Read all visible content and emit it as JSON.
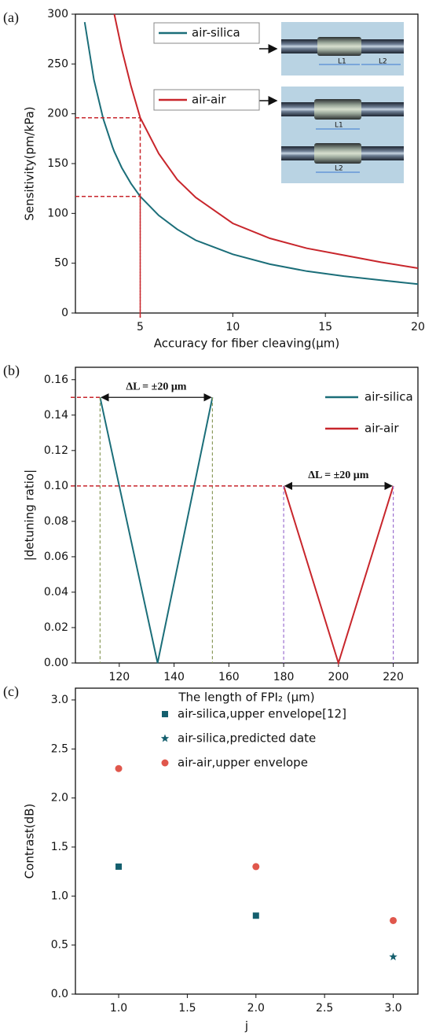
{
  "chart_data": [
    {
      "type": "line",
      "panel_label": "(a)",
      "x_label": "Accuracy for fiber cleaving(μm)",
      "y_label": "Sensitivity(pm/kPa)",
      "x": [
        2,
        2.5,
        3,
        3.5,
        3.6,
        4,
        4.5,
        5,
        6,
        7,
        8,
        10,
        12,
        14,
        16,
        18,
        20
      ],
      "series": [
        {
          "name": "air-silica",
          "color": "#1b6e79",
          "values": [
            292,
            234,
            195,
            167,
            162,
            146,
            130,
            117,
            98,
            84,
            73,
            59,
            49,
            42,
            37,
            33,
            29
          ]
        },
        {
          "name": "air-air",
          "color": "#c8262c",
          "values": [
            null,
            null,
            null,
            null,
            300,
            265,
            228,
            196,
            160,
            134,
            116,
            90,
            75,
            65,
            58,
            51,
            45
          ]
        }
      ],
      "xlim": [
        1.5,
        20
      ],
      "xticks": [
        5,
        10,
        15,
        20
      ],
      "ylim": [
        0,
        300
      ],
      "yticks": [
        0,
        50,
        100,
        150,
        200,
        250,
        300
      ],
      "guides": [
        {
          "x": 5,
          "y": 196
        },
        {
          "x": 5,
          "y": 117
        }
      ],
      "inset_labels": [
        "L1",
        "L2",
        "L1",
        "L2"
      ]
    },
    {
      "type": "line",
      "panel_label": "(b)",
      "x_label": "The length of FPI₂ (μm)",
      "y_label": "|detuning ratio|",
      "x": [
        113,
        134,
        154,
        180,
        200,
        220
      ],
      "series": [
        {
          "name": "air-silica",
          "color": "#1b6e79",
          "values": [
            0.15,
            0,
            0.15,
            null,
            null,
            null
          ]
        },
        {
          "name": "air-air",
          "color": "#c8262c",
          "values": [
            null,
            null,
            null,
            0.1,
            0,
            0.1
          ]
        }
      ],
      "xlim": [
        104,
        229
      ],
      "xticks": [
        120,
        140,
        160,
        180,
        200,
        220
      ],
      "ylim": [
        0,
        0.167
      ],
      "yticks": [
        {
          "value": 0,
          "label": "0.00"
        },
        {
          "value": 0.02,
          "label": "0.02"
        },
        {
          "value": 0.04,
          "label": "0.04"
        },
        {
          "value": 0.06,
          "label": "0.06"
        },
        {
          "value": 0.08,
          "label": "0.08"
        },
        {
          "value": 0.1,
          "label": "0.10"
        },
        {
          "value": 0.12,
          "label": "0.12"
        },
        {
          "value": 0.14,
          "label": "0.14"
        },
        {
          "value": 0.16,
          "label": "0.16"
        }
      ],
      "annotations": [
        "ΔL = ±20 μm",
        "ΔL = ±20 μm"
      ]
    },
    {
      "type": "scatter",
      "panel_label": "(c)",
      "x_label": "j",
      "y_label": "Contrast(dB)",
      "series": [
        {
          "name": "air-silica,upper envelope[12]",
          "color": "#145f6e",
          "marker": "square",
          "x": [
            1,
            2
          ],
          "values": [
            1.3,
            0.8
          ]
        },
        {
          "name": "air-silica,predicted date",
          "color": "#145f6e",
          "marker": "star",
          "x": [
            3
          ],
          "values": [
            0.38
          ]
        },
        {
          "name": "air-air,upper envelope",
          "color": "#e0574c",
          "marker": "circle",
          "x": [
            1,
            2,
            3
          ],
          "values": [
            2.3,
            1.3,
            0.75
          ]
        }
      ],
      "xlim": [
        0.685,
        3.18
      ],
      "xticks": [
        {
          "value": 1,
          "label": "1.0"
        },
        {
          "value": 1.5,
          "label": "1.5"
        },
        {
          "value": 2,
          "label": "2.0"
        },
        {
          "value": 2.5,
          "label": "2.5"
        },
        {
          "value": 3,
          "label": "3.0"
        }
      ],
      "ylim": [
        0,
        3.12
      ],
      "yticks": [
        {
          "value": 0,
          "label": "0.0"
        },
        {
          "value": 0.5,
          "label": "0.5"
        },
        {
          "value": 1,
          "label": "1.0"
        },
        {
          "value": 1.5,
          "label": "1.5"
        },
        {
          "value": 2,
          "label": "2.0"
        },
        {
          "value": 2.5,
          "label": "2.5"
        },
        {
          "value": 3,
          "label": "3.0"
        }
      ]
    }
  ]
}
